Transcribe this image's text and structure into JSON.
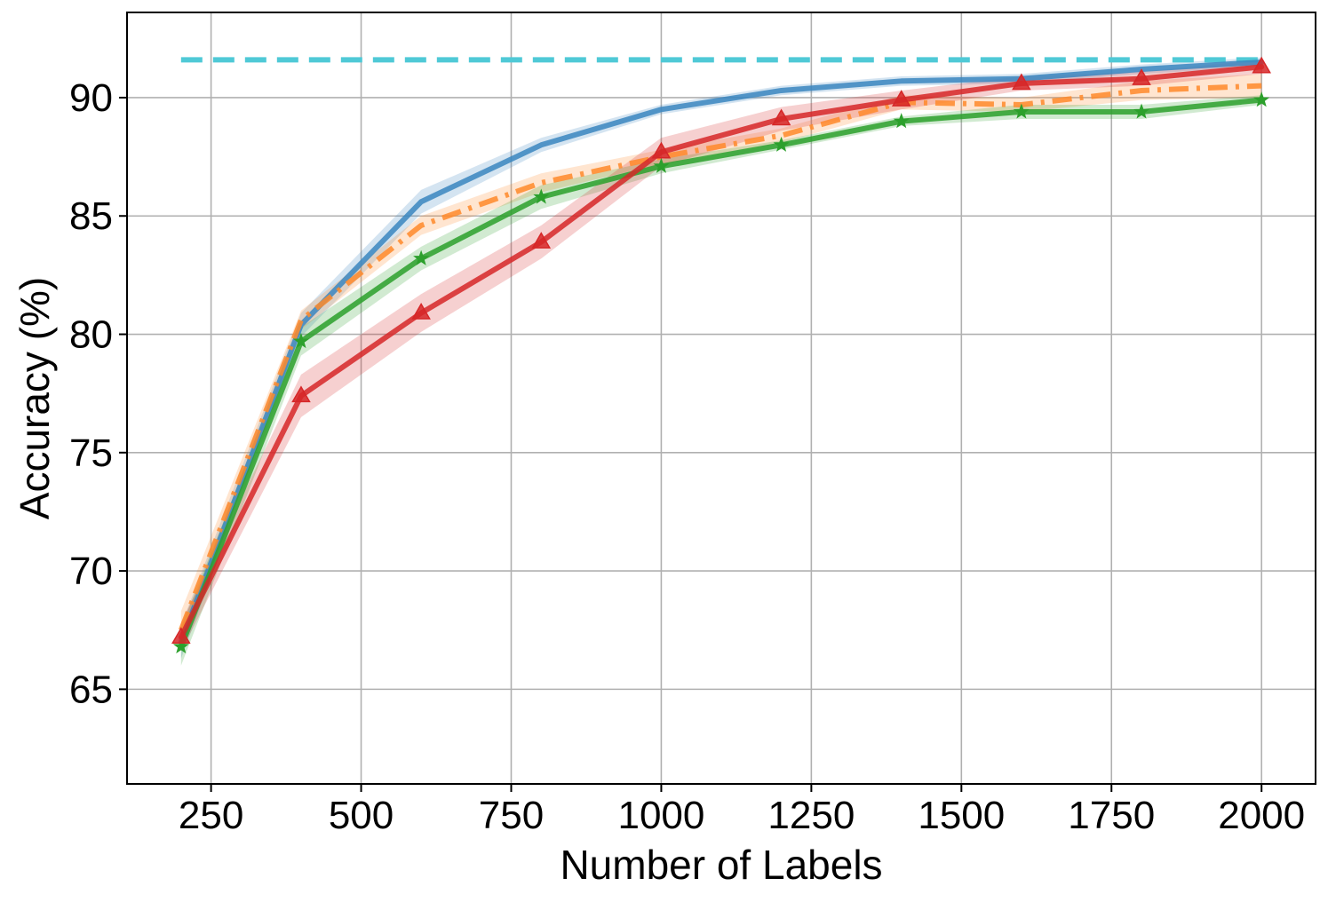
{
  "chart_data": {
    "type": "line",
    "title": "",
    "xlabel": "Number of Labels",
    "ylabel": "Accuracy (%)",
    "xlim": [
      110,
      2090
    ],
    "ylim": [
      61,
      93.6
    ],
    "xticks": [
      250,
      500,
      750,
      1000,
      1250,
      1500,
      1750,
      2000
    ],
    "yticks": [
      65,
      70,
      75,
      80,
      85,
      90
    ],
    "grid": true,
    "legend": "none",
    "x": [
      200,
      400,
      600,
      800,
      1000,
      1200,
      1400,
      1600,
      1800,
      2000
    ],
    "reference_line": {
      "color": "#4fc9d6",
      "style": "dashed",
      "x_start": 200,
      "x_end": 2000,
      "y": 91.6
    },
    "series": [
      {
        "color": "#3a86c0",
        "style": "solid",
        "marker": "none",
        "values": [
          67.0,
          80.4,
          85.6,
          88.0,
          89.5,
          90.3,
          90.7,
          90.8,
          91.2,
          91.5
        ],
        "band": [
          0.7,
          0.5,
          0.5,
          0.3,
          0.2,
          0.2,
          0.2,
          0.2,
          0.2,
          0.2
        ]
      },
      {
        "color": "#ff8a2a",
        "style": "dashdot",
        "marker": "none",
        "values": [
          67.5,
          80.6,
          84.6,
          86.4,
          87.5,
          88.4,
          89.8,
          89.7,
          90.3,
          90.5
        ],
        "band": [
          0.8,
          0.4,
          0.4,
          0.4,
          0.3,
          0.3,
          0.3,
          0.3,
          0.4,
          0.5
        ]
      },
      {
        "color": "#2ca02c",
        "style": "solid",
        "marker": "star",
        "values": [
          66.8,
          79.7,
          83.2,
          85.8,
          87.1,
          88.0,
          89.0,
          89.4,
          89.4,
          89.9
        ],
        "band": [
          0.8,
          0.6,
          0.5,
          0.5,
          0.3,
          0.2,
          0.2,
          0.3,
          0.3,
          0.2
        ]
      },
      {
        "color": "#d62728",
        "style": "solid",
        "marker": "triangle",
        "values": [
          67.2,
          77.4,
          80.9,
          83.9,
          87.7,
          89.1,
          89.9,
          90.6,
          90.8,
          91.3
        ],
        "band": [
          0.6,
          0.9,
          0.8,
          0.7,
          0.6,
          0.5,
          0.4,
          0.3,
          0.3,
          0.3
        ]
      }
    ]
  }
}
